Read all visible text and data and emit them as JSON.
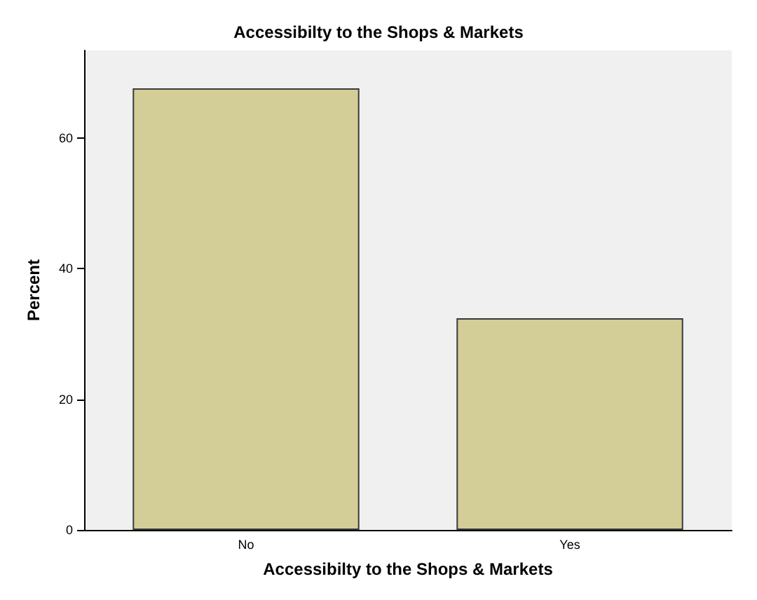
{
  "chart_data": {
    "type": "bar",
    "title": "Accessibilty to the Shops & Markets",
    "xlabel": "Accessibilty to the Shops & Markets",
    "ylabel": "Percent",
    "categories": [
      "No",
      "Yes"
    ],
    "values": [
      67.6,
      32.4
    ],
    "color": "#d3ce97",
    "ylim": [
      0,
      73.4
    ],
    "yticks": [
      0,
      20,
      40,
      60
    ],
    "grid": false
  }
}
